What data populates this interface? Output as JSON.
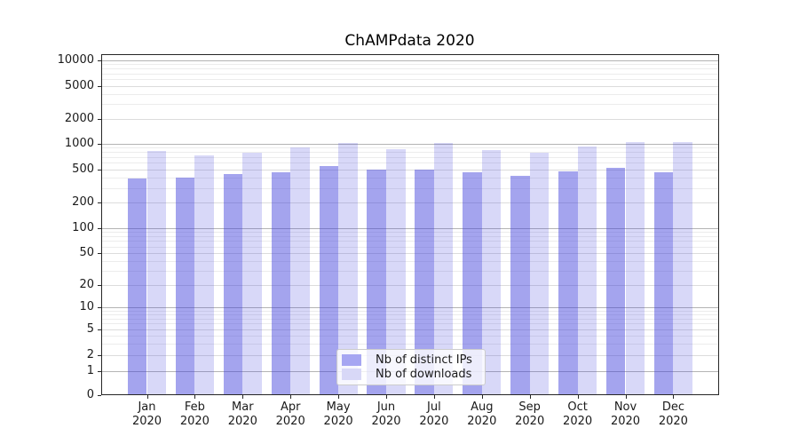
{
  "title": "ChAMPdata 2020",
  "chart_data": {
    "type": "bar",
    "title": "ChAMPdata 2020",
    "categories": [
      "Jan 2020",
      "Feb 2020",
      "Mar 2020",
      "Apr 2020",
      "May 2020",
      "Jun 2020",
      "Jul 2020",
      "Aug 2020",
      "Sep 2020",
      "Oct 2020",
      "Nov 2020",
      "Dec 2020"
    ],
    "series": [
      {
        "name": "Nb of distinct IPs",
        "color": "rgba(61,61,219,0.47)",
        "legend_color": "#a6a6f2",
        "values": [
          393,
          405,
          440,
          468,
          547,
          498,
          505,
          467,
          423,
          475,
          520,
          466
        ]
      },
      {
        "name": "Nb of downloads",
        "color": "rgba(61,61,219,0.20)",
        "legend_color": "#d8d8f7",
        "values": [
          818,
          736,
          795,
          919,
          1037,
          876,
          1024,
          845,
          791,
          930,
          1057,
          1042
        ]
      }
    ],
    "yscale": "symlog",
    "y_ticks": [
      0,
      1,
      2,
      5,
      10,
      20,
      50,
      100,
      200,
      500,
      1000,
      2000,
      5000,
      10000
    ],
    "ylim": [
      0,
      13000
    ],
    "xlabel": "",
    "ylabel": "",
    "grid": true,
    "legend_position": "lower center"
  },
  "colors": {
    "grid_major": "#b4b4b4",
    "grid_mid": "#dcdcdc",
    "grid_minor": "#ececec",
    "spine": "#262626",
    "text": "#1a1a1a"
  }
}
